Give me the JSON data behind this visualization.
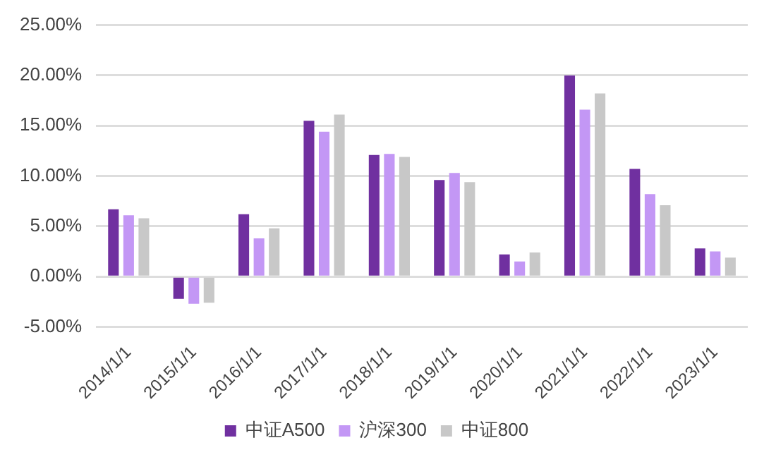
{
  "chart_data": {
    "type": "bar",
    "categories": [
      "2014/1/1",
      "2015/1/1",
      "2016/1/1",
      "2017/1/1",
      "2018/1/1",
      "2019/1/1",
      "2020/1/1",
      "2021/1/1",
      "2022/1/1",
      "2023/1/1"
    ],
    "series": [
      {
        "name": "中证A500",
        "color": "#7030a0",
        "values": [
          6.7,
          -2.2,
          6.2,
          15.5,
          12.1,
          9.6,
          2.2,
          20.0,
          10.7,
          2.8
        ]
      },
      {
        "name": "沪深300",
        "color": "#c397f5",
        "values": [
          6.1,
          -2.7,
          3.8,
          14.4,
          12.2,
          10.3,
          1.5,
          16.6,
          8.2,
          2.5
        ]
      },
      {
        "name": "中证800",
        "color": "#c8c8c8",
        "values": [
          5.8,
          -2.6,
          4.8,
          16.1,
          11.9,
          9.4,
          2.4,
          18.2,
          7.1,
          1.9
        ]
      }
    ],
    "ylim": [
      -5,
      25
    ],
    "yticks": [
      {
        "value": -5,
        "label": "-5.00%"
      },
      {
        "value": 0,
        "label": "0.00%"
      },
      {
        "value": 5,
        "label": "5.00%"
      },
      {
        "value": 10,
        "label": "10.00%"
      },
      {
        "value": 15,
        "label": "15.00%"
      },
      {
        "value": 20,
        "label": "20.00%"
      },
      {
        "value": 25,
        "label": "25.00%"
      }
    ],
    "grid": "y",
    "legend": "bottom"
  }
}
